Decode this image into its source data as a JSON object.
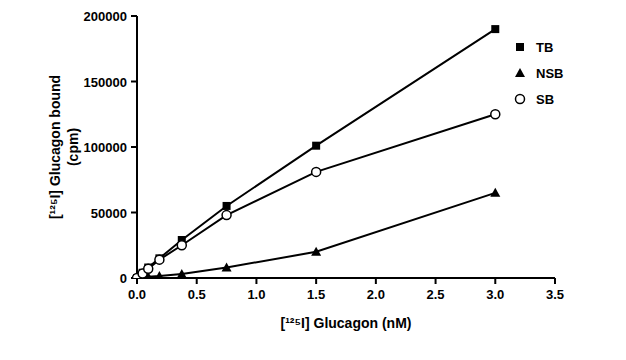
{
  "chart_data": {
    "type": "line",
    "x_label": "[¹²⁵I] Glucagon (nM)",
    "y_label": [
      "[¹²⁵I] Glucagon bound",
      "(cpm)"
    ],
    "x": [
      0,
      0.047,
      0.094,
      0.1875,
      0.375,
      0.75,
      1.5,
      3.0
    ],
    "series": [
      {
        "name": "TB",
        "color": "#000000",
        "marker": "square",
        "line_style": "solid",
        "values": [
          0,
          4000,
          8000,
          15000,
          29000,
          55000,
          101000,
          190000
        ]
      },
      {
        "name": "NSB",
        "color": "#000000",
        "marker": "triangle",
        "line_style": "solid",
        "values": [
          0,
          500,
          1000,
          1500,
          3000,
          8000,
          20000,
          65000
        ]
      },
      {
        "name": "SB",
        "color": "#000000",
        "marker": "open_circle",
        "line_style": "solid",
        "values": [
          0,
          3500,
          7000,
          14000,
          25000,
          48000,
          81000,
          125000
        ]
      }
    ],
    "xlim": [
      0,
      3.5
    ],
    "xticks": [
      {
        "value": 0,
        "label": "0.0"
      },
      {
        "value": 0.5,
        "label": "0.5"
      },
      {
        "value": 1,
        "label": "1.0"
      },
      {
        "value": 1.5,
        "label": "1.5"
      },
      {
        "value": 2,
        "label": "2.0"
      },
      {
        "value": 2.5,
        "label": "2.5"
      },
      {
        "value": 3,
        "label": "3.0"
      },
      {
        "value": 3.5,
        "label": "3.5"
      }
    ],
    "ylim": [
      0,
      200000
    ],
    "yticks": [
      0,
      50000,
      100000,
      150000,
      200000
    ],
    "grid": false,
    "legend": "right"
  }
}
